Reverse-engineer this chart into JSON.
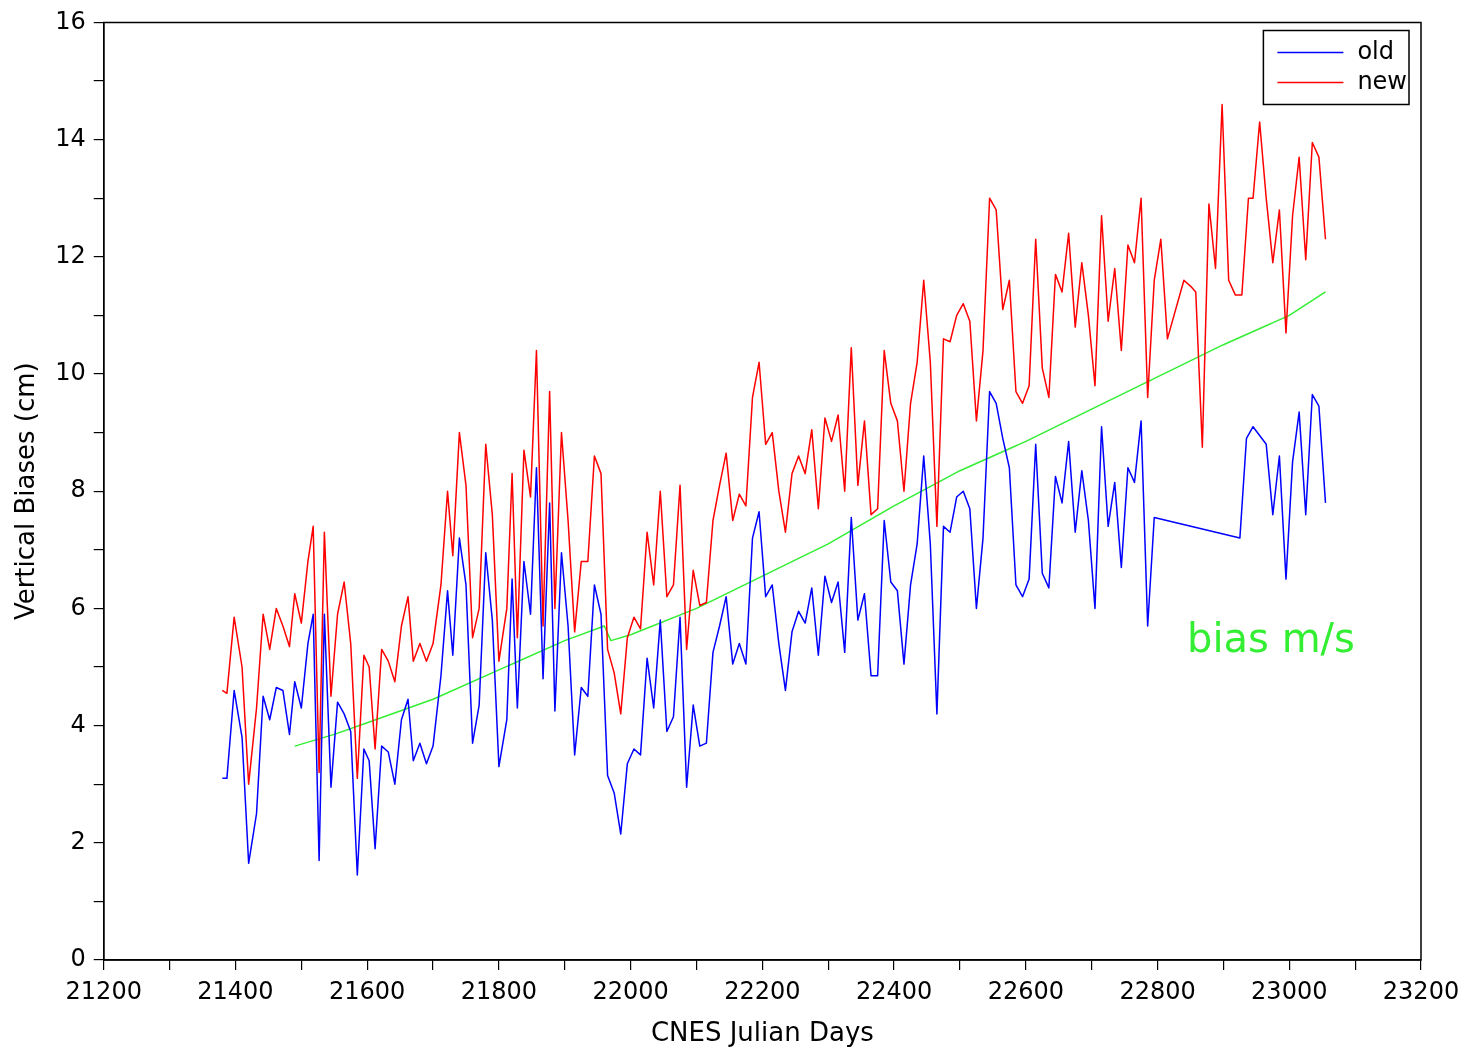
{
  "chart_data": {
    "type": "line",
    "xlabel": "CNES Julian Days",
    "ylabel": "Vertical Biases (cm)",
    "xlim": [
      21200,
      23200
    ],
    "xticks": [
      21200,
      {
        "value": 21300,
        "label": null
      },
      21400,
      {
        "value": 21500,
        "label": null
      },
      21600,
      {
        "value": 21700,
        "label": null
      },
      21800,
      {
        "value": 21900,
        "label": null
      },
      22000,
      {
        "value": 22100,
        "label": null
      },
      22200,
      {
        "value": 22300,
        "label": null
      },
      22400,
      {
        "value": 22500,
        "label": null
      },
      22600,
      {
        "value": 22700,
        "label": null
      },
      22800,
      {
        "value": 22900,
        "label": null
      },
      23000,
      {
        "value": 23100,
        "label": null
      },
      23200
    ],
    "ylim": [
      0,
      16
    ],
    "yticks": [
      0,
      {
        "value": 1,
        "label": null
      },
      2,
      {
        "value": 3,
        "label": null
      },
      4,
      {
        "value": 5,
        "label": null
      },
      6,
      {
        "value": 7,
        "label": null
      },
      8,
      {
        "value": 9,
        "label": null
      },
      10,
      {
        "value": 11,
        "label": null
      },
      12,
      {
        "value": 13,
        "label": null
      },
      14,
      {
        "value": 15,
        "label": null
      },
      16
    ],
    "grid": false,
    "legend": "top right",
    "marker": "none",
    "line_style": "solid",
    "annotations": [
      "bias m/s"
    ],
    "series": [
      {
        "name": "old",
        "color": "#0000ff",
        "x": [
          21380,
          21387,
          21398,
          21410,
          21420,
          21432,
          21442,
          21452,
          21462,
          21472,
          21482,
          21490,
          21500,
          21510,
          21518,
          21527,
          21535,
          21545,
          21555,
          21565,
          21575,
          21585,
          21595,
          21603,
          21612,
          21622,
          21632,
          21642,
          21652,
          21662,
          21670,
          21680,
          21690,
          21700,
          21712,
          21722,
          21730,
          21740,
          21750,
          21760,
          21770,
          21780,
          21790,
          21800,
          21812,
          21820,
          21828,
          21838,
          21848,
          21857,
          21867,
          21877,
          21885,
          21895,
          21905,
          21915,
          21925,
          21935,
          21945,
          21955,
          21965,
          21975,
          21985,
          21995,
          22005,
          22015,
          22025,
          22035,
          22045,
          22055,
          22065,
          22075,
          22085,
          22095,
          22105,
          22115,
          22125,
          22135,
          22145,
          22155,
          22165,
          22175,
          22185,
          22195,
          22205,
          22215,
          22225,
          22235,
          22245,
          22255,
          22265,
          22275,
          22285,
          22295,
          22305,
          22315,
          22325,
          22335,
          22345,
          22355,
          22365,
          22375,
          22385,
          22395,
          22405,
          22415,
          22425,
          22435,
          22445,
          22455,
          22465,
          22475,
          22485,
          22495,
          22505,
          22515,
          22525,
          22535,
          22545,
          22555,
          22565,
          22575,
          22585,
          22595,
          22605,
          22615,
          22625,
          22635,
          22645,
          22655,
          22665,
          22675,
          22685,
          22695,
          22705,
          22715,
          22725,
          22735,
          22745,
          22755,
          22765,
          22775,
          22785,
          22795,
          22925,
          22935,
          22945,
          22955,
          22965,
          22975,
          22985,
          22995,
          23005,
          23015,
          23025,
          23035,
          23045,
          23055
        ],
        "values": [
          3.1,
          3.1,
          4.6,
          3.8,
          1.65,
          2.5,
          4.5,
          4.1,
          4.65,
          4.6,
          3.85,
          4.75,
          4.3,
          5.4,
          5.9,
          1.7,
          5.9,
          2.95,
          4.4,
          4.2,
          3.9,
          1.45,
          3.6,
          3.4,
          1.9,
          3.65,
          3.55,
          3.0,
          4.1,
          4.45,
          3.4,
          3.7,
          3.35,
          3.65,
          4.85,
          6.3,
          5.2,
          7.2,
          6.4,
          3.7,
          4.35,
          6.95,
          5.8,
          3.3,
          4.1,
          6.5,
          4.3,
          6.8,
          5.9,
          8.4,
          4.8,
          7.8,
          4.25,
          6.95,
          5.7,
          3.5,
          4.65,
          4.5,
          6.4,
          5.9,
          3.15,
          2.85,
          2.15,
          3.35,
          3.6,
          3.5,
          5.15,
          4.3,
          5.8,
          3.9,
          4.15,
          5.85,
          2.95,
          4.35,
          3.65,
          3.7,
          5.25,
          5.7,
          6.2,
          5.05,
          5.4,
          5.05,
          7.2,
          7.65,
          6.2,
          6.4,
          5.4,
          4.6,
          5.6,
          5.95,
          5.75,
          6.35,
          5.2,
          6.55,
          6.1,
          6.45,
          5.25,
          7.55,
          5.8,
          6.25,
          4.85,
          4.85,
          7.5,
          6.45,
          6.3,
          5.05,
          6.4,
          7.1,
          8.6,
          7.1,
          4.2,
          7.4,
          7.3,
          7.9,
          8.0,
          7.7,
          6.0,
          7.2,
          9.7,
          9.5,
          8.9,
          8.4,
          6.4,
          6.2,
          6.5,
          8.8,
          6.6,
          6.35,
          8.25,
          7.8,
          8.85,
          7.3,
          8.35,
          7.5,
          6.0,
          9.1,
          7.4,
          8.15,
          6.7,
          8.4,
          8.15,
          9.2,
          5.7,
          7.55,
          7.2,
          8.9,
          9.1,
          8.95,
          8.8,
          7.6,
          8.6,
          6.5,
          8.5,
          9.35,
          7.6,
          9.65,
          9.45,
          7.8
        ]
      },
      {
        "name": "new",
        "color": "#ff0000",
        "x": [
          21380,
          21387,
          21398,
          21410,
          21420,
          21432,
          21442,
          21452,
          21462,
          21472,
          21482,
          21490,
          21500,
          21510,
          21518,
          21527,
          21535,
          21545,
          21555,
          21565,
          21575,
          21585,
          21595,
          21603,
          21612,
          21622,
          21632,
          21642,
          21652,
          21662,
          21670,
          21680,
          21690,
          21700,
          21712,
          21722,
          21730,
          21740,
          21750,
          21760,
          21770,
          21780,
          21790,
          21800,
          21812,
          21820,
          21828,
          21838,
          21848,
          21857,
          21867,
          21877,
          21885,
          21895,
          21905,
          21915,
          21925,
          21935,
          21945,
          21955,
          21965,
          21975,
          21985,
          21995,
          22005,
          22015,
          22025,
          22035,
          22045,
          22055,
          22065,
          22075,
          22085,
          22095,
          22105,
          22115,
          22125,
          22135,
          22145,
          22155,
          22165,
          22175,
          22185,
          22195,
          22205,
          22215,
          22225,
          22235,
          22245,
          22255,
          22265,
          22275,
          22285,
          22295,
          22305,
          22315,
          22325,
          22335,
          22345,
          22355,
          22365,
          22375,
          22385,
          22395,
          22405,
          22415,
          22425,
          22435,
          22445,
          22455,
          22465,
          22475,
          22485,
          22495,
          22505,
          22515,
          22525,
          22535,
          22545,
          22555,
          22565,
          22575,
          22585,
          22595,
          22605,
          22615,
          22625,
          22635,
          22645,
          22655,
          22665,
          22675,
          22685,
          22695,
          22705,
          22715,
          22725,
          22735,
          22745,
          22755,
          22765,
          22775,
          22785,
          22795,
          22805,
          22815,
          22825,
          22840,
          22850,
          22858,
          22868,
          22878,
          22888,
          22898,
          22908,
          22918,
          22928,
          22938,
          22945,
          22955,
          22965,
          22975,
          22985,
          22995,
          23005,
          23015,
          23025,
          23035,
          23045,
          23055
        ],
        "values": [
          4.6,
          4.55,
          5.85,
          5.0,
          3.0,
          4.3,
          5.9,
          5.3,
          6.0,
          5.7,
          5.35,
          6.25,
          5.75,
          6.8,
          7.4,
          3.2,
          7.3,
          4.5,
          5.9,
          6.45,
          5.4,
          3.1,
          5.2,
          5.0,
          3.6,
          5.3,
          5.1,
          4.75,
          5.7,
          6.2,
          5.1,
          5.4,
          5.1,
          5.4,
          6.4,
          8.0,
          6.9,
          9.0,
          8.1,
          5.5,
          6.0,
          8.8,
          7.6,
          5.1,
          6.0,
          8.3,
          5.5,
          8.7,
          7.9,
          10.4,
          5.7,
          9.7,
          6.0,
          9.0,
          7.5,
          5.6,
          6.8,
          6.8,
          8.6,
          8.3,
          5.3,
          4.9,
          4.2,
          5.5,
          5.85,
          5.65,
          7.3,
          6.4,
          8.0,
          6.2,
          6.4,
          8.1,
          5.3,
          6.65,
          6.05,
          6.1,
          7.5,
          8.1,
          8.65,
          7.5,
          7.95,
          7.75,
          9.6,
          10.2,
          8.8,
          9.0,
          8.0,
          7.3,
          8.3,
          8.6,
          8.3,
          9.05,
          7.7,
          9.25,
          8.85,
          9.3,
          8.0,
          10.45,
          8.1,
          9.2,
          7.6,
          7.7,
          10.4,
          9.5,
          9.2,
          8.0,
          9.5,
          10.2,
          11.6,
          10.2,
          7.4,
          10.6,
          10.55,
          11.0,
          11.2,
          10.9,
          9.2,
          10.4,
          13.0,
          12.8,
          11.1,
          11.6,
          9.7,
          9.5,
          9.8,
          12.3,
          10.1,
          9.6,
          11.7,
          11.4,
          12.4,
          10.8,
          11.9,
          11.0,
          9.8,
          12.7,
          10.9,
          11.8,
          10.4,
          12.2,
          11.9,
          13.0,
          9.6,
          11.6,
          12.3,
          10.6,
          11.0,
          11.6,
          11.5,
          11.4,
          8.75,
          12.9,
          11.8,
          14.6,
          11.6,
          11.35,
          11.35,
          13.0,
          13.0,
          14.3,
          13.0,
          11.9,
          12.8,
          10.7,
          12.7,
          13.7,
          11.95,
          13.95,
          13.7,
          12.3
        ]
      },
      {
        "color": "#33ee33",
        "x": [
          21490,
          21550,
          21600,
          21700,
          21800,
          21900,
          21960,
          21970,
          22000,
          22100,
          22200,
          22300,
          22400,
          22500,
          22600,
          22700,
          22800,
          22900,
          23000,
          23055
        ],
        "values": [
          3.65,
          3.85,
          4.05,
          4.45,
          4.95,
          5.45,
          5.7,
          5.45,
          5.55,
          6.0,
          6.55,
          7.1,
          7.75,
          8.35,
          8.85,
          9.4,
          9.95,
          10.5,
          11.0,
          11.4
        ]
      }
    ]
  }
}
